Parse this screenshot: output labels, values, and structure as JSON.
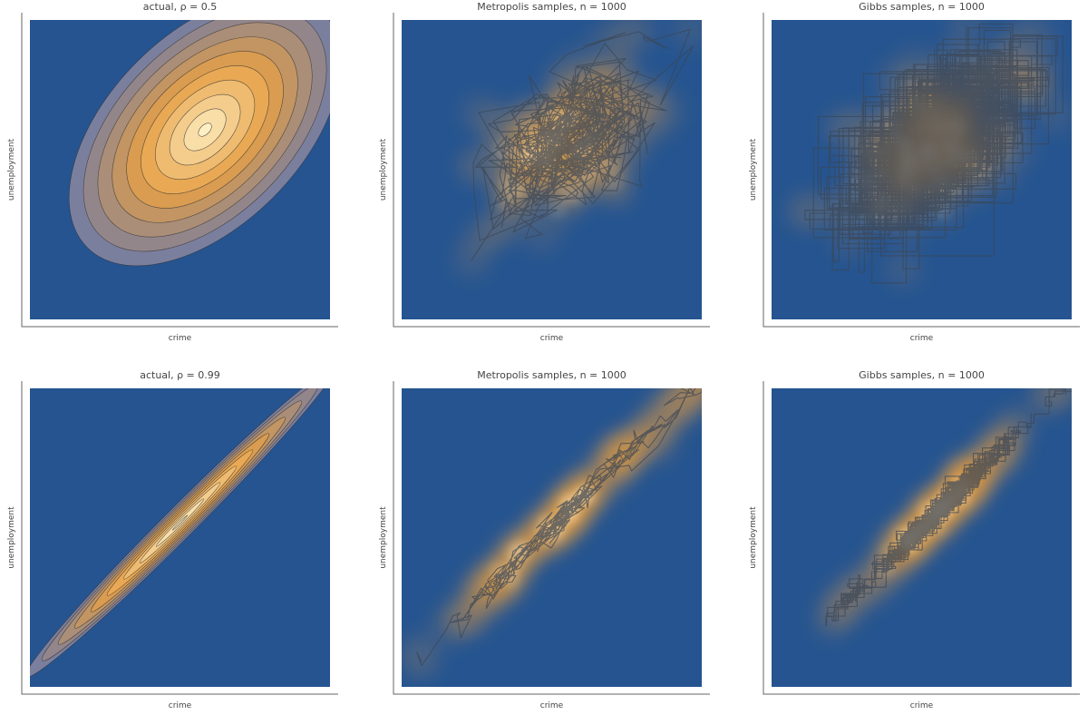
{
  "colors": {
    "background": "#255490",
    "contour_low": "#255490",
    "contour_mid": "#e6a046",
    "contour_high": "#fff0c4",
    "contour_line": "#333333",
    "trace_line": "#3b4656"
  },
  "chart_data": [
    {
      "type": "contour",
      "title": "actual, ρ = 0.5",
      "xlabel": "crime",
      "ylabel": "unemployment",
      "rho": 0.5,
      "levels": 10,
      "xlim": [
        -3,
        3
      ],
      "ylim": [
        -3,
        3
      ],
      "mean": [
        0.5,
        0.8
      ],
      "sd": [
        1.1,
        1.1
      ],
      "grid": false
    },
    {
      "type": "density-trace",
      "title": "Metropolis samples, n = 1000",
      "xlabel": "crime",
      "ylabel": "unemployment",
      "sampler": "metropolis",
      "n": 1000,
      "rho": 0.5,
      "xlim": [
        -3,
        3
      ],
      "ylim": [
        -3,
        3
      ],
      "grid": false
    },
    {
      "type": "density-trace",
      "title": "Gibbs samples, n = 1000",
      "xlabel": "crime",
      "ylabel": "unemployment",
      "sampler": "gibbs",
      "n": 1000,
      "rho": 0.5,
      "xlim": [
        -3,
        3
      ],
      "ylim": [
        -3,
        3
      ],
      "grid": false
    },
    {
      "type": "contour",
      "title": "actual, ρ = 0.99",
      "xlabel": "crime",
      "ylabel": "unemployment",
      "rho": 0.99,
      "levels": 10,
      "xlim": [
        -3,
        3
      ],
      "ylim": [
        -3,
        3
      ],
      "mean": [
        0.0,
        0.3
      ],
      "sd": [
        1.25,
        1.25
      ],
      "grid": false
    },
    {
      "type": "density-trace",
      "title": "Metropolis samples, n = 1000",
      "xlabel": "crime",
      "ylabel": "unemployment",
      "sampler": "metropolis",
      "n": 1000,
      "rho": 0.99,
      "xlim": [
        -3,
        3
      ],
      "ylim": [
        -3,
        3
      ],
      "grid": false
    },
    {
      "type": "density-trace",
      "title": "Gibbs samples, n = 1000",
      "xlabel": "crime",
      "ylabel": "unemployment",
      "sampler": "gibbs",
      "n": 1000,
      "rho": 0.99,
      "xlim": [
        -3,
        3
      ],
      "ylim": [
        -3,
        3
      ],
      "grid": false
    }
  ]
}
